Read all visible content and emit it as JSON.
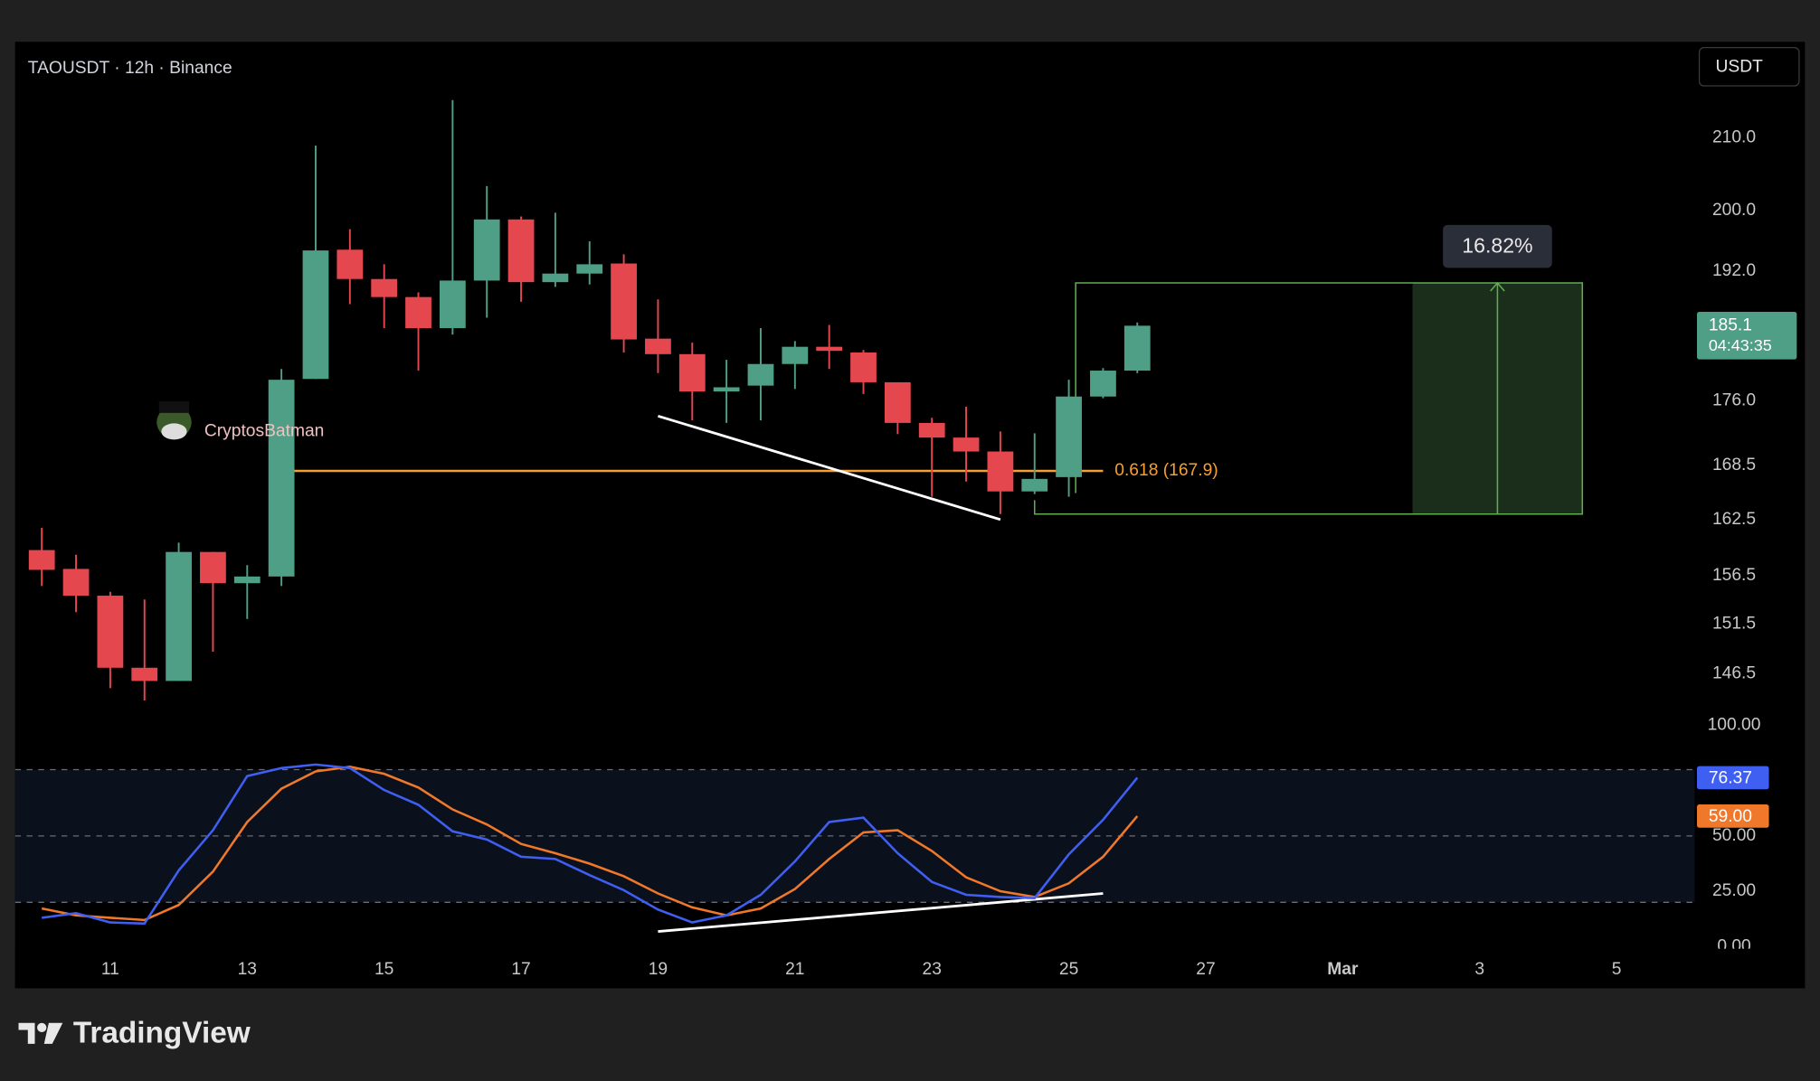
{
  "header": {
    "symbol_line": "TAOUSDT · 12h · Binance",
    "currency_button": "USDT",
    "watermark": "CryptosBatman",
    "brand": "TradingView"
  },
  "chart_data": [
    {
      "type": "candlestick",
      "log_scale": true,
      "up_color": "#4f9f87",
      "down_color": "#e5474f",
      "x": [
        10.0,
        10.5,
        11.0,
        11.5,
        12.0,
        12.5,
        13.0,
        13.5,
        14.0,
        14.5,
        15.0,
        15.5,
        16.0,
        16.5,
        17.0,
        17.5,
        18.0,
        18.5,
        19.0,
        19.5,
        20.0,
        20.5,
        21.0,
        21.5,
        22.0,
        22.5,
        23.0,
        23.5,
        24.0,
        24.5,
        25.0,
        25.5,
        26.0
      ],
      "open": [
        159.2,
        157.2,
        154.4,
        147.1,
        145.8,
        159.0,
        155.7,
        156.4,
        178.6,
        194.8,
        191.0,
        188.7,
        184.8,
        190.8,
        198.8,
        190.6,
        191.7,
        193.0,
        183.5,
        181.6,
        177.1,
        177.8,
        180.4,
        182.5,
        181.8,
        178.2,
        173.4,
        171.7,
        170.1,
        165.6,
        167.2,
        176.5,
        179.6
      ],
      "high": [
        161.6,
        158.7,
        154.8,
        154.0,
        160.0,
        159.0,
        157.6,
        179.8,
        208.9,
        197.5,
        192.9,
        189.3,
        215.4,
        203.3,
        199.2,
        199.7,
        195.9,
        194.2,
        188.4,
        183.0,
        180.9,
        184.8,
        183.2,
        185.2,
        182.1,
        178.2,
        174.0,
        175.3,
        172.4,
        172.2,
        178.5,
        179.9,
        185.5
      ],
      "low": [
        155.4,
        152.7,
        145.1,
        143.9,
        145.8,
        148.7,
        152.0,
        155.4,
        178.6,
        187.8,
        184.8,
        179.6,
        184.0,
        186.1,
        188.1,
        190.0,
        190.3,
        181.8,
        179.3,
        173.7,
        173.4,
        173.7,
        177.4,
        179.8,
        176.8,
        172.1,
        165.0,
        166.7,
        163.1,
        165.3,
        165.0,
        176.3,
        179.3
      ],
      "close": [
        157.1,
        154.4,
        147.1,
        145.8,
        159.0,
        155.7,
        156.4,
        178.5,
        194.7,
        191.0,
        188.7,
        184.8,
        190.8,
        198.8,
        190.6,
        191.7,
        192.9,
        183.4,
        181.6,
        177.1,
        177.6,
        180.4,
        182.5,
        182.0,
        178.2,
        173.4,
        171.7,
        170.1,
        165.6,
        167.0,
        176.5,
        179.6,
        185.1
      ],
      "xlim": [
        9.61,
        34.14
      ],
      "xticks": [
        11,
        13,
        15,
        17,
        19,
        21,
        23,
        25,
        27,
        {
          "value": 29,
          "label": "Mar"
        },
        {
          "value": 31,
          "label": "3"
        },
        {
          "value": 33,
          "label": "5"
        }
      ],
      "ylim": [
        143.0,
        224.0
      ],
      "yticks": [
        {
          "value": 210,
          "label": "210.0"
        },
        {
          "value": 200,
          "label": "200.0"
        },
        {
          "value": 192,
          "label": "192.0"
        },
        {
          "value": 176,
          "label": "176.0"
        },
        {
          "value": 168.5,
          "label": "168.5"
        },
        {
          "value": 162.5,
          "label": "162.5"
        },
        {
          "value": 156.5,
          "label": "156.5"
        },
        {
          "value": 151.5,
          "label": "151.5"
        },
        {
          "value": 146.5,
          "label": "146.5"
        }
      ],
      "countdown": "04:43:35",
      "fib_level": {
        "label": "0.618 (167.9)",
        "value": 167.9,
        "x": [
          13.5,
          25.5
        ],
        "color": "#f5a030"
      },
      "trendline": {
        "x": [
          19.0,
          24.0
        ],
        "values": [
          174.2,
          162.5
        ]
      },
      "range_box": {
        "x": [
          24.5,
          32.5
        ],
        "values": [
          163.1,
          190.5
        ],
        "label": "16.82%",
        "color": "#5fae4f"
      }
    },
    {
      "type": "line",
      "x": [
        10.0,
        10.5,
        11.0,
        11.5,
        12.0,
        12.5,
        13.0,
        13.5,
        14.0,
        14.5,
        15.0,
        15.5,
        16.0,
        16.5,
        17.0,
        17.5,
        18.0,
        18.5,
        19.0,
        19.5,
        20.0,
        20.5,
        21.0,
        21.5,
        22.0,
        22.5,
        23.0,
        23.5,
        24.0,
        24.5,
        25.0,
        25.5,
        26.0
      ],
      "series": [
        {
          "color": "#3f5ff2",
          "values": [
            13.0,
            15.1,
            10.9,
            10.4,
            34.4,
            52.6,
            77.1,
            80.7,
            82.3,
            80.7,
            70.8,
            64.1,
            52.1,
            48.4,
            40.6,
            39.6,
            32.3,
            25.5,
            16.7,
            10.9,
            14.1,
            23.4,
            38.5,
            56.3,
            58.3,
            42.2,
            29.2,
            23.4,
            22.4,
            21.9,
            41.7,
            57.3,
            76.37
          ],
          "last_label": "76.37"
        },
        {
          "color": "#f0782a",
          "values": [
            17.2,
            14.1,
            13.0,
            12.0,
            18.8,
            33.9,
            56.3,
            71.4,
            79.2,
            81.3,
            78.1,
            71.9,
            62.0,
            55.2,
            46.4,
            42.2,
            37.5,
            31.8,
            24.0,
            17.7,
            14.1,
            17.2,
            26.0,
            39.6,
            51.6,
            52.6,
            43.2,
            31.3,
            25.0,
            22.4,
            28.6,
            40.6,
            59.0
          ],
          "last_label": "59.00"
        }
      ],
      "ylim": [
        -1,
        106
      ],
      "yticks": [
        {
          "value": 100,
          "label": "100.00"
        },
        {
          "value": 50,
          "label": "50.00"
        },
        {
          "value": 25,
          "label": "25.00"
        },
        {
          "value": 0,
          "label": "0.00"
        }
      ],
      "bands": [
        20,
        50,
        80
      ],
      "trendline": {
        "x": [
          19.0,
          25.5
        ],
        "values": [
          6.8,
          24.0
        ]
      }
    }
  ]
}
